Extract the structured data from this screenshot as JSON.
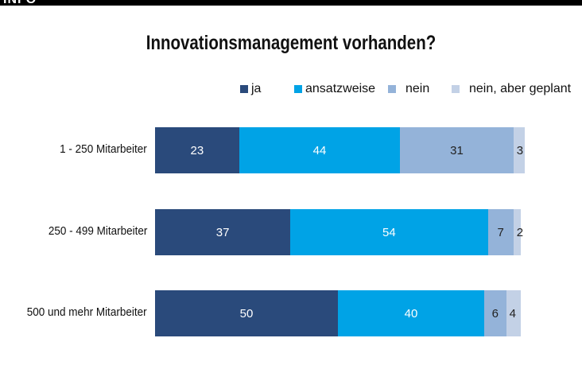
{
  "header": {
    "label": "INFO"
  },
  "chart_data": {
    "type": "bar",
    "orientation": "horizontal-stacked",
    "title": "Innovationsmanagement vorhanden?",
    "categories": [
      "1 - 250 Mitarbeiter",
      "250 - 499 Mitarbeiter",
      "500 und mehr Mitarbeiter"
    ],
    "series": [
      {
        "name": "ja",
        "color": "#2a4a7b",
        "values": [
          23,
          37,
          50
        ]
      },
      {
        "name": "ansatzweise",
        "color": "#00a3e6",
        "values": [
          44,
          54,
          40
        ]
      },
      {
        "name": "nein",
        "color": "#94b3d9",
        "values": [
          31,
          7,
          6
        ]
      },
      {
        "name": "nein, aber geplant",
        "color": "#c3d1e6",
        "values": [
          3,
          2,
          4
        ]
      }
    ],
    "legend": "top-right"
  }
}
